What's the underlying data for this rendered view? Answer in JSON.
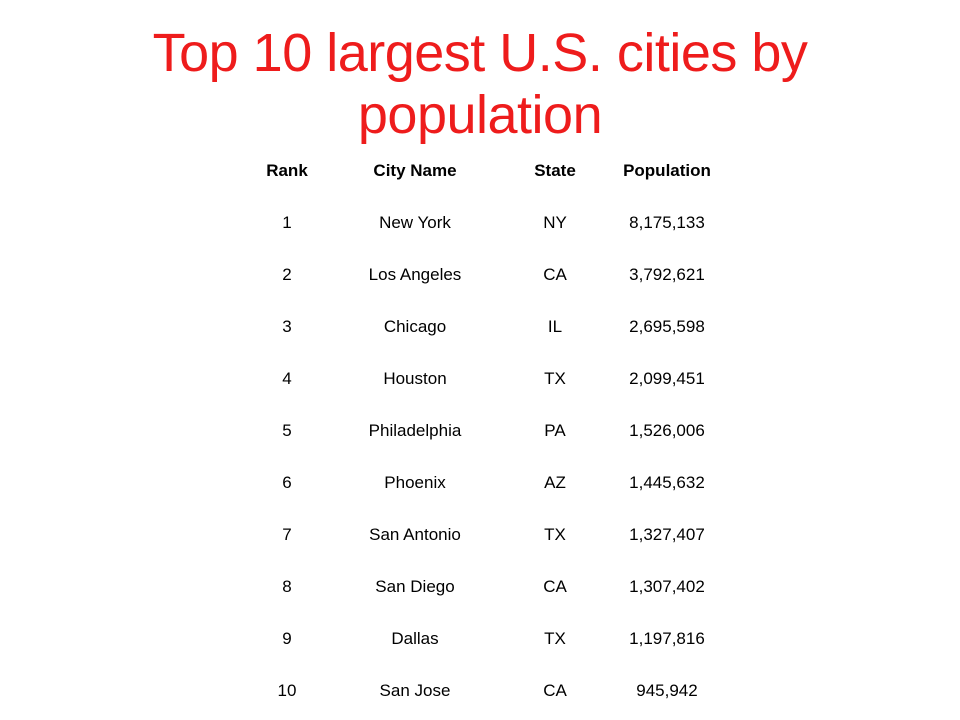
{
  "slide": {
    "title": "Top 10 largest U.S. cities by population"
  },
  "table": {
    "headers": [
      "Rank",
      "City Name",
      "State",
      "Population"
    ],
    "rows": [
      [
        "1",
        "New York",
        "NY",
        "8,175,133"
      ],
      [
        "2",
        "Los Angeles",
        "CA",
        "3,792,621"
      ],
      [
        "3",
        "Chicago",
        "IL",
        "2,695,598"
      ],
      [
        "4",
        "Houston",
        "TX",
        "2,099,451"
      ],
      [
        "5",
        "Philadelphia",
        "PA",
        "1,526,006"
      ],
      [
        "6",
        "Phoenix",
        "AZ",
        "1,445,632"
      ],
      [
        "7",
        "San Antonio",
        "TX",
        "1,327,407"
      ],
      [
        "8",
        "San Diego",
        "CA",
        "1,307,402"
      ],
      [
        "9",
        "Dallas",
        "TX",
        "1,197,816"
      ],
      [
        "10",
        "San Jose",
        "CA",
        "945,942"
      ]
    ]
  },
  "colors": {
    "title": "#ee1c1c",
    "text": "#000000",
    "background": "#ffffff"
  }
}
